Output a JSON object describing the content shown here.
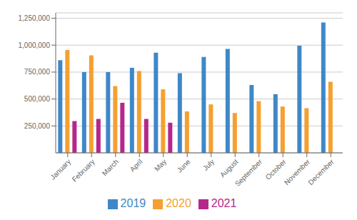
{
  "chart_data": {
    "type": "bar",
    "categories": [
      "January",
      "February",
      "March",
      "April",
      "May",
      "June",
      "July",
      "August",
      "September",
      "October",
      "November",
      "December"
    ],
    "series": [
      {
        "name": "2019",
        "color": "#3e88c8",
        "values": [
          860000,
          750000,
          750000,
          790000,
          930000,
          740000,
          890000,
          965000,
          630000,
          545000,
          995000,
          1210000
        ]
      },
      {
        "name": "2020",
        "color": "#f5a030",
        "values": [
          955000,
          905000,
          620000,
          760000,
          590000,
          385000,
          450000,
          370000,
          480000,
          430000,
          415000,
          660000
        ]
      },
      {
        "name": "2021",
        "color": "#b5278c",
        "values": [
          295000,
          315000,
          465000,
          315000,
          280000,
          null,
          null,
          null,
          null,
          null,
          null,
          null
        ]
      }
    ],
    "ylim": [
      0,
      1300000
    ],
    "yticks": [
      {
        "value": 250000,
        "label": "250,000"
      },
      {
        "value": 500000,
        "label": "500,000"
      },
      {
        "value": 750000,
        "label": "750,000"
      },
      {
        "value": 1000000,
        "label": "1,000,000"
      },
      {
        "value": 1250000,
        "label": "1,250,000"
      }
    ],
    "grid": true,
    "legend": "bottom"
  }
}
